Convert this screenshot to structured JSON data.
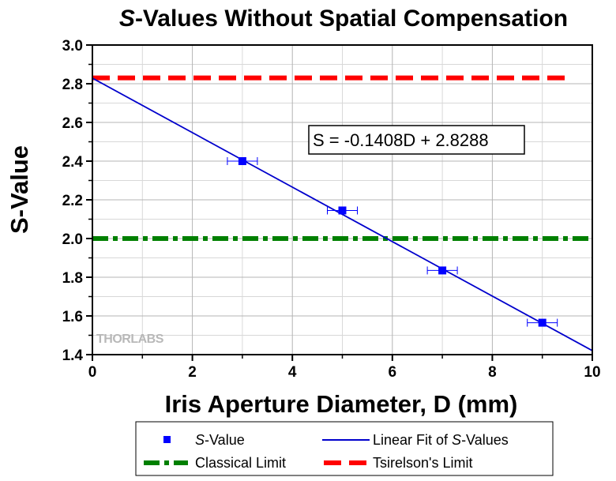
{
  "chart_data": {
    "type": "scatter",
    "title": {
      "italic": "S",
      "rest": "-Values Without Spatial Compensation"
    },
    "xlabel": "Iris Aperture Diameter, D (mm)",
    "ylabel": "S-Value",
    "xlim": [
      0,
      10
    ],
    "ylim": [
      1.4,
      3.0
    ],
    "xticks": [
      0,
      2,
      4,
      6,
      8,
      10
    ],
    "yticks": [
      1.4,
      1.6,
      1.8,
      2.0,
      2.2,
      2.4,
      2.6,
      2.8,
      3.0
    ],
    "xtick_labels": [
      "0",
      "2",
      "4",
      "6",
      "8",
      "10"
    ],
    "ytick_labels": [
      "1.4",
      "1.6",
      "1.8",
      "2.0",
      "2.2",
      "2.4",
      "2.6",
      "2.8",
      "3.0"
    ],
    "grid": true,
    "series": [
      {
        "name": "S-Value",
        "kind": "points",
        "color": "#0000ff",
        "x": [
          3,
          5,
          7,
          9
        ],
        "y": [
          2.4,
          2.145,
          1.835,
          1.565
        ],
        "xerr": [
          0.3,
          0.3,
          0.3,
          0.3
        ]
      },
      {
        "name": "Linear Fit of S-Values",
        "kind": "line",
        "color": "#0000cc",
        "slope": -0.1408,
        "intercept": 2.8288
      },
      {
        "name": "Classical Limit",
        "kind": "hline",
        "color": "#008000",
        "y": 2.0
      },
      {
        "name": "Tsirelson's Limit",
        "kind": "hline",
        "color": "#ff0000",
        "y": 2.83,
        "xrange": [
          0,
          9.5
        ]
      }
    ],
    "annotation": "S = -0.1408D + 2.8288",
    "legend": {
      "placement": "bottom",
      "entries": [
        {
          "italic": "S",
          "rest": "-Value"
        },
        {
          "italic": "",
          "rest": "Linear Fit of "
        },
        {
          "italic": "",
          "rest": "Classical Limit"
        },
        {
          "italic": "",
          "rest": "Tsirelson's Limit"
        }
      ],
      "fit_suffix": {
        "italic": "S",
        "rest": "-Values"
      }
    },
    "watermark": "THORLABS"
  }
}
